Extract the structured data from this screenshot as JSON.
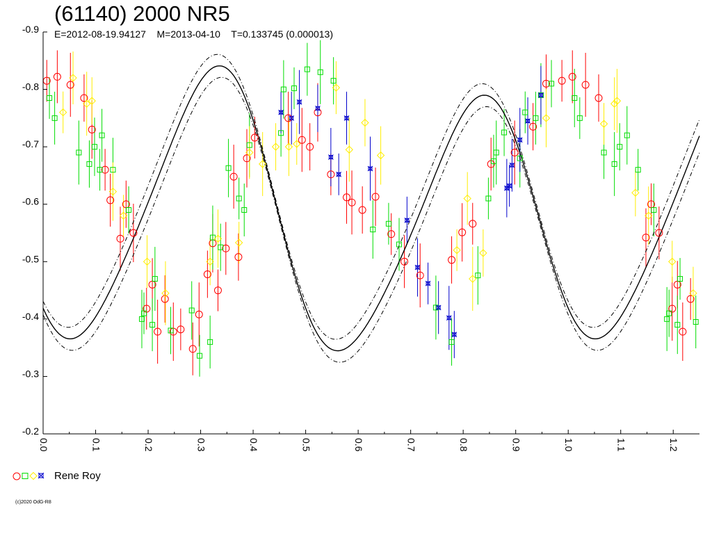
{
  "chart_data": {
    "type": "scatter",
    "title": "(61140) 2000 NR5",
    "subtitle": "E=2012-08-19.94127    M=2013-04-10    T=0.133745 (0.000013)",
    "xlabel": "",
    "ylabel": "",
    "xlim": [
      0.0,
      1.25
    ],
    "ylim": [
      -0.9,
      -0.2
    ],
    "x_ticks": [
      "0.0",
      "0.1",
      "0.2",
      "0.3",
      "0.4",
      "0.5",
      "0.6",
      "0.7",
      "0.8",
      "0.9",
      "1.0",
      "1.1",
      "1.2"
    ],
    "y_ticks": [
      "-0.9",
      "-0.8",
      "-0.7",
      "-0.6",
      "-0.5",
      "-0.4",
      "-0.3",
      "-0.2"
    ],
    "legend": {
      "label": "Rene Roy",
      "position": "bottom-left"
    },
    "fit_curve": {
      "type": "fourier",
      "period_phase": 1.0,
      "mean": -0.579,
      "terms": [
        {
          "h": 2,
          "a": 0.135,
          "b": 0.18
        },
        {
          "h": 1,
          "a": 0.0,
          "b": -0.03
        },
        {
          "h": 4,
          "a": 0.025,
          "b": 0.0
        }
      ],
      "envelope": 0.02
    },
    "series": [
      {
        "marker": "circle",
        "color": "#ff0000",
        "points": [
          [
            0.007,
            -0.815
          ],
          [
            0.027,
            -0.822
          ],
          [
            0.052,
            -0.808
          ],
          [
            0.078,
            -0.785
          ],
          [
            0.093,
            -0.73
          ],
          [
            0.118,
            -0.66
          ],
          [
            0.128,
            -0.607
          ],
          [
            0.147,
            -0.54
          ],
          [
            0.158,
            -0.6
          ],
          [
            0.172,
            -0.55
          ],
          [
            0.197,
            -0.418
          ],
          [
            0.208,
            -0.46
          ],
          [
            0.218,
            -0.378
          ],
          [
            0.232,
            -0.435
          ],
          [
            0.248,
            -0.378
          ],
          [
            0.262,
            -0.382
          ],
          [
            0.285,
            -0.348
          ],
          [
            0.297,
            -0.408
          ],
          [
            0.313,
            -0.478
          ],
          [
            0.323,
            -0.532
          ],
          [
            0.333,
            -0.45
          ],
          [
            0.348,
            -0.523
          ],
          [
            0.363,
            -0.648
          ],
          [
            0.372,
            -0.508
          ],
          [
            0.388,
            -0.68
          ],
          [
            0.403,
            -0.716
          ],
          [
            0.467,
            -0.75
          ],
          [
            0.493,
            -0.712
          ],
          [
            0.508,
            -0.7
          ],
          [
            0.523,
            -0.76
          ],
          [
            0.548,
            -0.652
          ],
          [
            0.578,
            -0.612
          ],
          [
            0.588,
            -0.603
          ],
          [
            0.608,
            -0.59
          ],
          [
            0.633,
            -0.613
          ],
          [
            0.663,
            -0.548
          ],
          [
            0.688,
            -0.5
          ],
          [
            0.718,
            -0.476
          ],
          [
            0.778,
            -0.503
          ],
          [
            0.798,
            -0.551
          ],
          [
            0.818,
            -0.566
          ],
          [
            0.853,
            -0.67
          ],
          [
            0.898,
            -0.69
          ],
          [
            0.933,
            -0.735
          ],
          [
            0.958,
            -0.81
          ],
          [
            0.988,
            -0.815
          ],
          [
            1.008,
            -0.822
          ],
          [
            1.033,
            -0.808
          ],
          [
            1.058,
            -0.785
          ],
          [
            1.148,
            -0.542
          ],
          [
            1.158,
            -0.6
          ],
          [
            1.173,
            -0.55
          ],
          [
            1.198,
            -0.418
          ],
          [
            1.208,
            -0.46
          ],
          [
            1.218,
            -0.378
          ],
          [
            1.233,
            -0.435
          ]
        ]
      },
      {
        "marker": "square",
        "color": "#00dd00",
        "points": [
          [
            0.012,
            -0.785
          ],
          [
            0.022,
            -0.75
          ],
          [
            0.068,
            -0.69
          ],
          [
            0.088,
            -0.67
          ],
          [
            0.098,
            -0.7
          ],
          [
            0.108,
            -0.66
          ],
          [
            0.112,
            -0.72
          ],
          [
            0.133,
            -0.66
          ],
          [
            0.163,
            -0.59
          ],
          [
            0.188,
            -0.4
          ],
          [
            0.192,
            -0.41
          ],
          [
            0.208,
            -0.39
          ],
          [
            0.213,
            -0.47
          ],
          [
            0.243,
            -0.38
          ],
          [
            0.283,
            -0.415
          ],
          [
            0.298,
            -0.336
          ],
          [
            0.318,
            -0.36
          ],
          [
            0.323,
            -0.542
          ],
          [
            0.338,
            -0.525
          ],
          [
            0.353,
            -0.663
          ],
          [
            0.373,
            -0.61
          ],
          [
            0.383,
            -0.59
          ],
          [
            0.393,
            -0.703
          ],
          [
            0.453,
            -0.724
          ],
          [
            0.458,
            -0.8
          ],
          [
            0.478,
            -0.802
          ],
          [
            0.503,
            -0.835
          ],
          [
            0.528,
            -0.83
          ],
          [
            0.553,
            -0.815
          ],
          [
            0.628,
            -0.556
          ],
          [
            0.658,
            -0.566
          ],
          [
            0.678,
            -0.53
          ],
          [
            0.748,
            -0.42
          ],
          [
            0.778,
            -0.36
          ],
          [
            0.828,
            -0.476
          ],
          [
            0.848,
            -0.61
          ],
          [
            0.858,
            -0.675
          ],
          [
            0.863,
            -0.69
          ],
          [
            0.878,
            -0.725
          ],
          [
            0.908,
            -0.68
          ],
          [
            0.918,
            -0.76
          ],
          [
            0.938,
            -0.75
          ],
          [
            0.948,
            -0.79
          ],
          [
            0.968,
            -0.81
          ],
          [
            1.012,
            -0.785
          ],
          [
            1.022,
            -0.75
          ],
          [
            1.068,
            -0.69
          ],
          [
            1.088,
            -0.67
          ],
          [
            1.098,
            -0.7
          ],
          [
            1.112,
            -0.72
          ],
          [
            1.133,
            -0.66
          ],
          [
            1.163,
            -0.59
          ],
          [
            1.188,
            -0.4
          ],
          [
            1.192,
            -0.41
          ],
          [
            1.208,
            -0.39
          ],
          [
            1.213,
            -0.47
          ],
          [
            1.243,
            -0.395
          ]
        ]
      },
      {
        "marker": "diamond",
        "color": "#ffee00",
        "points": [
          [
            0.038,
            -0.76
          ],
          [
            0.057,
            -0.82
          ],
          [
            0.083,
            -0.775
          ],
          [
            0.093,
            -0.78
          ],
          [
            0.133,
            -0.622
          ],
          [
            0.153,
            -0.58
          ],
          [
            0.198,
            -0.5
          ],
          [
            0.233,
            -0.445
          ],
          [
            0.318,
            -0.5
          ],
          [
            0.333,
            -0.54
          ],
          [
            0.373,
            -0.533
          ],
          [
            0.393,
            -0.69
          ],
          [
            0.418,
            -0.67
          ],
          [
            0.443,
            -0.7
          ],
          [
            0.468,
            -0.7
          ],
          [
            0.483,
            -0.705
          ],
          [
            0.558,
            -0.803
          ],
          [
            0.583,
            -0.695
          ],
          [
            0.613,
            -0.742
          ],
          [
            0.643,
            -0.685
          ],
          [
            0.788,
            -0.52
          ],
          [
            0.808,
            -0.61
          ],
          [
            0.818,
            -0.47
          ],
          [
            0.838,
            -0.515
          ],
          [
            0.958,
            -0.75
          ],
          [
            1.068,
            -0.74
          ],
          [
            1.088,
            -0.775
          ],
          [
            1.093,
            -0.78
          ],
          [
            1.128,
            -0.62
          ],
          [
            1.153,
            -0.58
          ],
          [
            1.198,
            -0.5
          ],
          [
            1.238,
            -0.445
          ]
        ]
      },
      {
        "marker": "x-square",
        "color": "#0000cc",
        "points": [
          [
            0.453,
            -0.76
          ],
          [
            0.473,
            -0.75
          ],
          [
            0.488,
            -0.778
          ],
          [
            0.523,
            -0.767
          ],
          [
            0.548,
            -0.682
          ],
          [
            0.563,
            -0.652
          ],
          [
            0.578,
            -0.75
          ],
          [
            0.623,
            -0.662
          ],
          [
            0.693,
            -0.572
          ],
          [
            0.713,
            -0.49
          ],
          [
            0.733,
            -0.462
          ],
          [
            0.753,
            -0.42
          ],
          [
            0.773,
            -0.402
          ],
          [
            0.783,
            -0.373
          ],
          [
            0.883,
            -0.628
          ],
          [
            0.888,
            -0.632
          ],
          [
            0.893,
            -0.668
          ],
          [
            0.908,
            -0.712
          ],
          [
            0.923,
            -0.745
          ],
          [
            0.948,
            -0.79
          ]
        ]
      }
    ]
  },
  "footer": {
    "copyright": "(c)2020 OdG-R8"
  }
}
